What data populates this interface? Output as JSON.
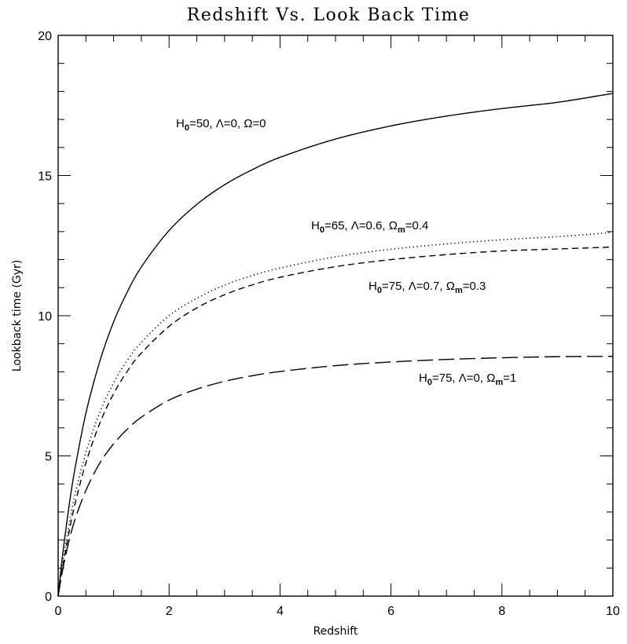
{
  "chart_data": {
    "type": "line",
    "title": "Redshift Vs. Look Back Time",
    "xlabel": "Redshift",
    "ylabel": "Lookback time (Gyr)",
    "xlim": [
      0,
      10
    ],
    "ylim": [
      0,
      20
    ],
    "x_ticks": [
      "0",
      "2",
      "4",
      "6",
      "8",
      "10"
    ],
    "y_ticks": [
      "0",
      "5",
      "10",
      "15",
      "20"
    ],
    "grid": false,
    "legend": "none",
    "series": [
      {
        "label_parts": [
          [
            "H",
            "0",
            "=50,  Λ=0,  Ω=0"
          ]
        ],
        "dash": "solid",
        "x": [
          0,
          0.05,
          0.1,
          0.2,
          0.3,
          0.5,
          0.75,
          1,
          1.25,
          1.5,
          2,
          2.5,
          3,
          3.5,
          4,
          5,
          6,
          7,
          8,
          9,
          10
        ],
        "y": [
          0,
          0.94,
          1.78,
          3.26,
          4.51,
          6.52,
          8.37,
          9.78,
          10.86,
          11.74,
          13.04,
          13.97,
          14.67,
          15.21,
          15.65,
          16.3,
          16.77,
          17.12,
          17.39,
          17.61,
          17.93
        ]
      },
      {
        "label_parts": [
          [
            "H",
            "0",
            "=65,  Λ=0.6,  "
          ],
          [
            "Ω",
            "m",
            "=0.4"
          ]
        ],
        "dash": "dotted",
        "x": [
          0,
          0.05,
          0.1,
          0.2,
          0.3,
          0.5,
          0.75,
          1,
          1.25,
          1.5,
          2,
          2.5,
          3,
          3.5,
          4,
          5,
          6,
          7,
          8,
          9,
          10
        ],
        "y": [
          0,
          0.73,
          1.4,
          2.58,
          3.58,
          5.12,
          6.55,
          7.61,
          8.42,
          9.05,
          10.0,
          10.62,
          11.09,
          11.43,
          11.7,
          12.1,
          12.37,
          12.56,
          12.71,
          12.82,
          12.97
        ]
      },
      {
        "label_parts": [
          [
            "H",
            "0",
            "=75,  Λ=0.7,  "
          ],
          [
            "Ω",
            "m",
            "=0.3"
          ]
        ],
        "dash": "dashed",
        "x": [
          0,
          0.05,
          0.1,
          0.2,
          0.3,
          0.5,
          0.75,
          1,
          1.25,
          1.5,
          2,
          2.5,
          3,
          3.5,
          4,
          5,
          6,
          7,
          8,
          9,
          10
        ],
        "y": [
          0,
          0.64,
          1.24,
          2.32,
          3.25,
          4.75,
          6.16,
          7.22,
          8.03,
          8.67,
          9.62,
          10.28,
          10.75,
          11.1,
          11.37,
          11.75,
          12.0,
          12.18,
          12.31,
          12.38,
          12.45
        ]
      },
      {
        "label_parts": [
          [
            "H",
            "0",
            "=75,  Λ=0,  "
          ],
          [
            "Ω",
            "m",
            "=1"
          ]
        ],
        "dash": "longdash",
        "x": [
          0,
          0.05,
          0.1,
          0.2,
          0.3,
          0.5,
          0.75,
          1,
          1.25,
          1.5,
          2,
          2.5,
          3,
          3.5,
          4,
          5,
          6,
          7,
          8,
          9,
          10
        ],
        "y": [
          0,
          0.6,
          1.12,
          2.0,
          2.71,
          3.77,
          4.74,
          5.43,
          5.96,
          6.38,
          6.99,
          7.38,
          7.66,
          7.86,
          8.01,
          8.22,
          8.35,
          8.44,
          8.5,
          8.54,
          8.55
        ]
      }
    ]
  }
}
